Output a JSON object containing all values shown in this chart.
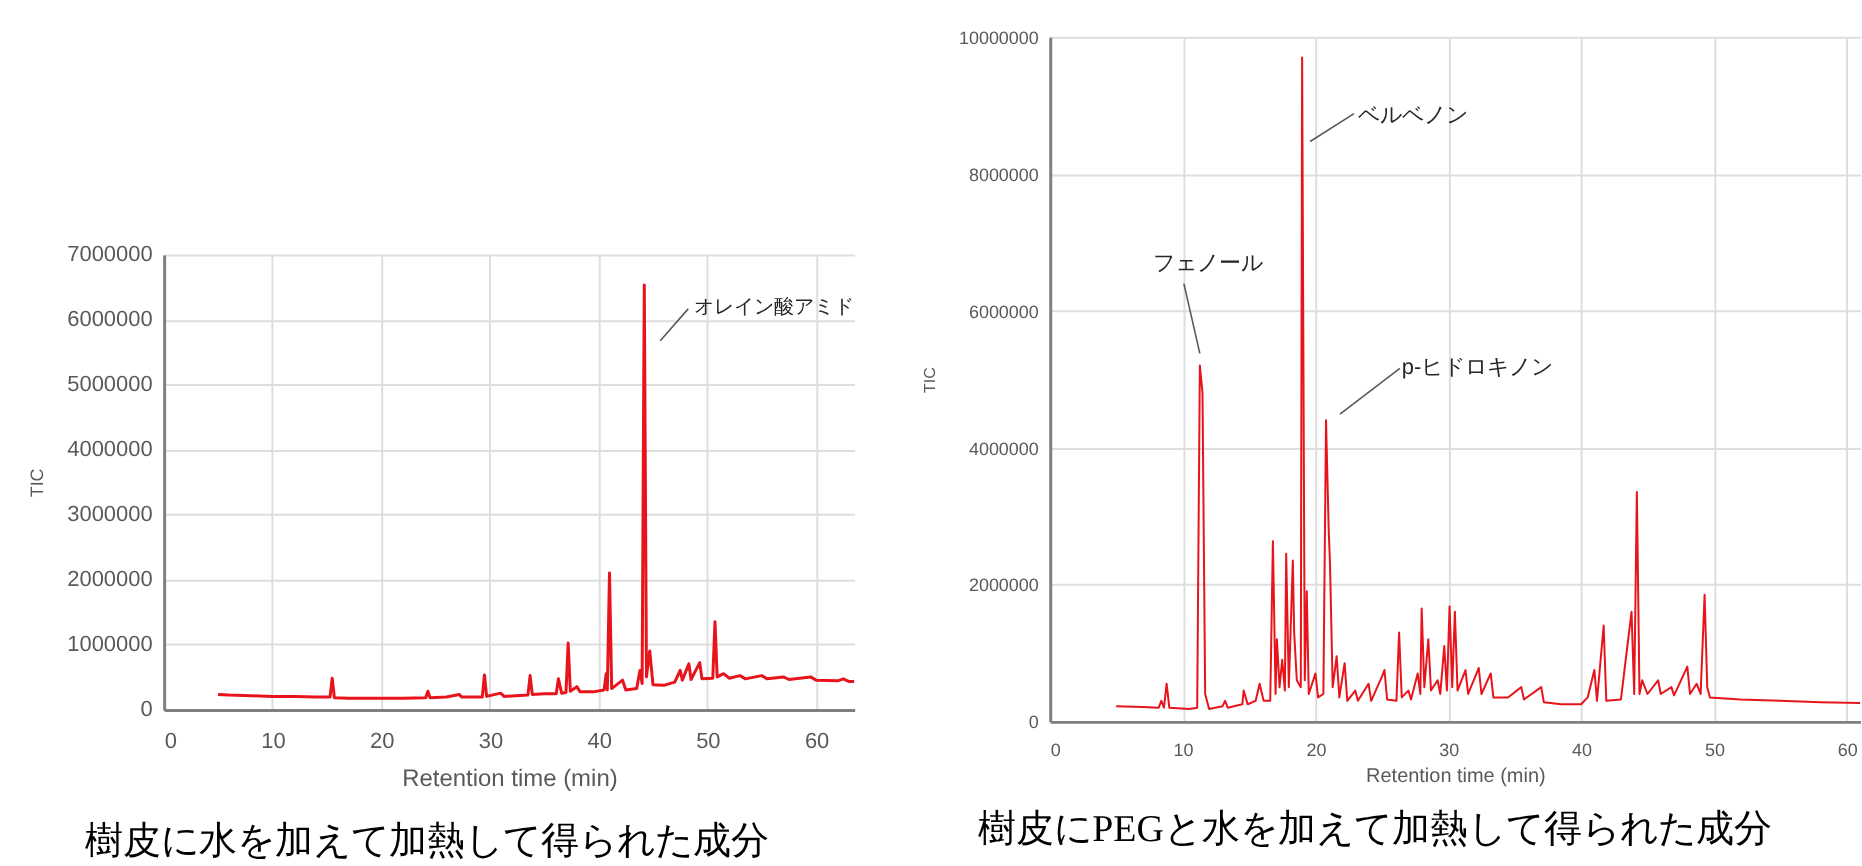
{
  "chart_data": [
    {
      "type": "line",
      "xlabel": "Retention time (min)",
      "ylabel": "TIC",
      "color": "#e8141b",
      "x": [
        5.0,
        6.0,
        8.0,
        10.0,
        12.0,
        14.0,
        15.3,
        15.5,
        15.7,
        17.0,
        20.0,
        22.0,
        24.1,
        24.3,
        24.5,
        26.0,
        27.2,
        27.4,
        29.3,
        29.5,
        29.7,
        31.0,
        31.3,
        33.5,
        33.7,
        33.9,
        35.0,
        36.1,
        36.3,
        36.6,
        37.0,
        37.2,
        37.4,
        38.0,
        38.3,
        39.5,
        40.5,
        40.7,
        40.8,
        41.0,
        41.2,
        42.2,
        42.5,
        43.5,
        43.8,
        44.0,
        44.2,
        44.4,
        44.7,
        45.0,
        46.0,
        47.0,
        47.5,
        47.7,
        48.3,
        48.5,
        49.3,
        49.5,
        50.5,
        50.7,
        50.9,
        51.5,
        52.0,
        53.0,
        53.5,
        55.0,
        55.5,
        57.0,
        57.5,
        59.5,
        60.0,
        62.0,
        62.5,
        63.0,
        63.5
      ],
      "values": [
        230000,
        220000,
        210000,
        200000,
        200000,
        190000,
        190000,
        480000,
        180000,
        170000,
        170000,
        170000,
        180000,
        280000,
        180000,
        190000,
        230000,
        190000,
        190000,
        530000,
        200000,
        250000,
        200000,
        220000,
        520000,
        230000,
        240000,
        240000,
        470000,
        250000,
        260000,
        1020000,
        280000,
        350000,
        270000,
        270000,
        300000,
        550000,
        300000,
        2100000,
        320000,
        450000,
        300000,
        320000,
        600000,
        400000,
        6530000,
        500000,
        900000,
        380000,
        370000,
        420000,
        600000,
        450000,
        700000,
        460000,
        720000,
        470000,
        480000,
        1350000,
        500000,
        550000,
        480000,
        520000,
        470000,
        520000,
        470000,
        500000,
        460000,
        500000,
        450000,
        440000,
        470000,
        430000,
        430000
      ],
      "xlim": [
        0,
        63.5
      ],
      "ylim": [
        0,
        7000000
      ],
      "xticks": [
        0,
        10,
        20,
        30,
        40,
        50,
        60
      ],
      "yticks": [
        0,
        1000000,
        2000000,
        3000000,
        4000000,
        5000000,
        6000000,
        7000000
      ],
      "grid": true,
      "annotations": [
        {
          "text": "オレイン酸アミド",
          "x": 44.2,
          "y": 6530000
        },
        "樹皮に水を加えて加熱して得られた成分"
      ]
    },
    {
      "type": "line",
      "xlabel": "Retention time (min)",
      "ylabel": "TIC",
      "color": "#e8141b",
      "x": [
        5.0,
        7.0,
        8.2,
        8.4,
        8.6,
        8.8,
        9.0,
        10.5,
        11.1,
        11.3,
        11.5,
        11.7,
        12.0,
        13.0,
        13.2,
        13.4,
        14.5,
        14.6,
        14.9,
        15.5,
        15.8,
        16.1,
        16.6,
        16.8,
        17.0,
        17.1,
        17.3,
        17.5,
        17.7,
        17.8,
        18.0,
        18.3,
        18.4,
        18.6,
        18.9,
        19.0,
        19.2,
        19.35,
        19.5,
        20.0,
        20.2,
        20.6,
        20.8,
        21.0,
        21.1,
        21.3,
        21.6,
        21.8,
        22.2,
        22.4,
        23.0,
        23.2,
        24.0,
        24.2,
        25.0,
        25.2,
        25.4,
        26.1,
        26.3,
        26.5,
        27.0,
        27.2,
        27.7,
        27.9,
        28.0,
        28.2,
        28.5,
        28.7,
        29.2,
        29.4,
        29.7,
        29.9,
        30.1,
        30.3,
        30.5,
        30.7,
        31.3,
        31.5,
        32.3,
        32.5,
        33.2,
        33.4,
        34.5,
        35.5,
        35.7,
        37.0,
        37.2,
        38.5,
        40.0,
        40.5,
        41.0,
        41.2,
        41.7,
        41.9,
        43.0,
        43.8,
        44.0,
        44.2,
        44.4,
        44.6,
        45.0,
        45.8,
        46.0,
        46.8,
        47.0,
        48.0,
        48.2,
        48.7,
        49.0,
        49.3,
        49.5,
        49.7,
        52.0,
        55.0,
        58.0,
        61.0
      ],
      "values": [
        220000,
        210000,
        200000,
        300000,
        200000,
        550000,
        200000,
        180000,
        200000,
        5200000,
        4800000,
        400000,
        180000,
        220000,
        300000,
        200000,
        250000,
        450000,
        250000,
        300000,
        550000,
        300000,
        300000,
        2630000,
        400000,
        1200000,
        500000,
        900000,
        450000,
        2450000,
        500000,
        2350000,
        1300000,
        600000,
        500000,
        9700000,
        600000,
        1900000,
        400000,
        700000,
        350000,
        400000,
        4400000,
        2800000,
        2300000,
        500000,
        950000,
        350000,
        850000,
        300000,
        450000,
        300000,
        550000,
        300000,
        650000,
        750000,
        320000,
        300000,
        1300000,
        350000,
        450000,
        320000,
        700000,
        400000,
        1650000,
        500000,
        1200000,
        450000,
        600000,
        400000,
        1100000,
        450000,
        1680000,
        500000,
        1600000,
        450000,
        750000,
        400000,
        780000,
        400000,
        700000,
        350000,
        350000,
        500000,
        320000,
        500000,
        280000,
        250000,
        250000,
        350000,
        750000,
        300000,
        1400000,
        300000,
        320000,
        1600000,
        400000,
        3350000,
        400000,
        600000,
        400000,
        600000,
        400000,
        500000,
        380000,
        800000,
        400000,
        550000,
        400000,
        1850000,
        500000,
        350000,
        320000,
        300000,
        280000,
        270000
      ],
      "xlim": [
        0,
        61
      ],
      "ylim": [
        0,
        10000000
      ],
      "xticks": [
        0,
        10,
        20,
        30,
        40,
        50,
        60
      ],
      "yticks": [
        0,
        2000000,
        4000000,
        6000000,
        8000000,
        10000000
      ],
      "grid": true,
      "annotations": [
        {
          "text": "フェノール",
          "x": 11.3,
          "y": 5200000
        },
        {
          "text": "ベルベノン",
          "x": 19.0,
          "y": 8500000
        },
        {
          "text": "p-ヒドロキノン",
          "x": 20.8,
          "y": 4400000
        },
        "樹皮にPEGと水を加えて加熱して得られた成分"
      ]
    }
  ]
}
